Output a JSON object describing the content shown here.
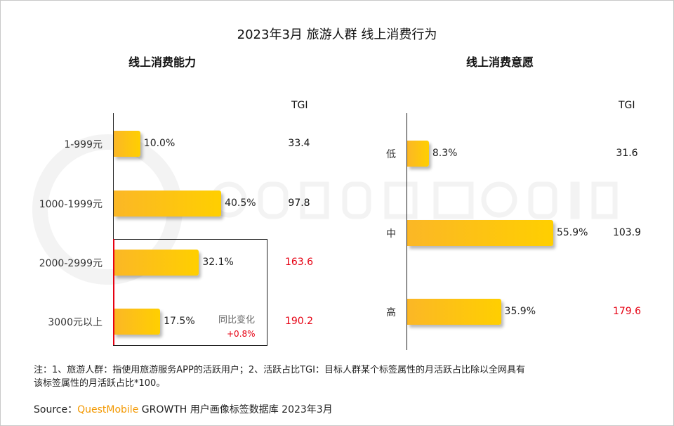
{
  "title": "2023年3月 旅游人群 线上消费行为",
  "watermark": "QUESTMOBILE",
  "colors": {
    "bar_start": "#fbb726",
    "bar_end": "#ffcf00",
    "highlight": "#e60012",
    "brand": "#f39800"
  },
  "chart_data": [
    {
      "type": "bar",
      "orientation": "horizontal",
      "title": "线上消费能力",
      "tgi_header": "TGI",
      "categories": [
        "1-999元",
        "1000-1999元",
        "2000-2999元",
        "3000元以上"
      ],
      "values": [
        10.0,
        40.5,
        32.1,
        17.5
      ],
      "labels": [
        "10.0%",
        "40.5%",
        "32.1%",
        "17.5%"
      ],
      "tgi": [
        "33.4",
        "97.8",
        "163.6",
        "190.2"
      ],
      "tgi_highlight": [
        false,
        false,
        true,
        true
      ],
      "annotation": {
        "label": "同比变化",
        "value": "+0.8%"
      }
    },
    {
      "type": "bar",
      "orientation": "horizontal",
      "title": "线上消费意愿",
      "tgi_header": "TGI",
      "categories": [
        "低",
        "中",
        "高"
      ],
      "values": [
        8.3,
        55.9,
        35.9
      ],
      "labels": [
        "8.3%",
        "55.9%",
        "35.9%"
      ],
      "tgi": [
        "31.6",
        "103.9",
        "179.6"
      ],
      "tgi_highlight": [
        false,
        false,
        true
      ]
    }
  ],
  "note": {
    "line1": "注：1、旅游人群：指使用旅游服务APP的活跃用户；2、活跃占比TGI：目标人群某个标签属性的月活跃占比除以全网具有",
    "line2": "该标签属性的月活跃占比*100。"
  },
  "source": {
    "prefix": "Source：",
    "brand": "QuestMobile",
    "rest": "GROWTH 用户画像标签数据库 2023年3月"
  }
}
